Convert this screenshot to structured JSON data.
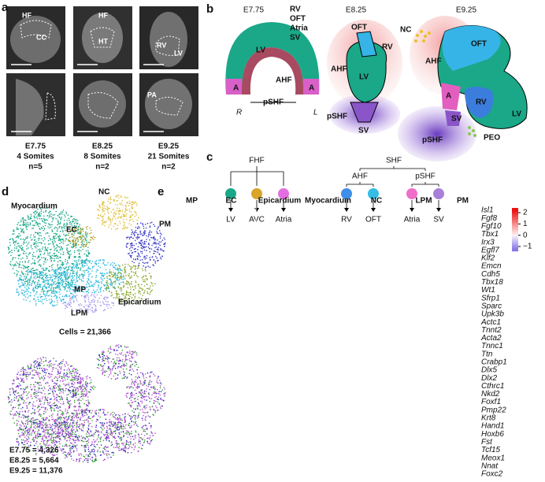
{
  "panel_a": {
    "label": "a",
    "image_labels": [
      [
        "HF",
        "CC"
      ],
      [
        "HF",
        "HT"
      ],
      [
        "RV",
        "LV"
      ],
      [],
      [],
      [
        "PA"
      ]
    ],
    "stages": [
      {
        "stage": "E7.75",
        "somites": "4 Somites",
        "n": "n=5"
      },
      {
        "stage": "E8.25",
        "somites": "8 Somites",
        "n": "n=2"
      },
      {
        "stage": "E9.25",
        "somites": "21 Somites",
        "n": "n=2"
      }
    ]
  },
  "panel_b": {
    "label": "b",
    "legend": [
      {
        "name": "RV",
        "color": "#3b7ddd"
      },
      {
        "name": "OFT",
        "color": "#36b4e8"
      },
      {
        "name": "Atria",
        "color": "#e25fc0"
      },
      {
        "name": "SV",
        "color": "#8a55c8"
      }
    ],
    "e775": {
      "stage": "E7.75",
      "labels": [
        "LV",
        "AHF",
        "A",
        "A",
        "pSHF",
        "R",
        "L"
      ]
    },
    "e825": {
      "stage": "E8.25",
      "labels": [
        "OFT",
        "RV",
        "AHF",
        "LV",
        "pSHF",
        "SV"
      ]
    },
    "e925": {
      "stage": "E9.25",
      "labels": [
        "NC",
        "AHF",
        "OFT",
        "A",
        "RV",
        "SV",
        "LV",
        "pSHF",
        "PEO"
      ]
    }
  },
  "panel_c": {
    "label": "c",
    "roots": [
      "FHF",
      "SHF"
    ],
    "branches": [
      "AHF",
      "pSHF"
    ],
    "leaves": [
      {
        "name": "LV",
        "color": "#1aa888"
      },
      {
        "name": "AVC",
        "color": "#d9a528"
      },
      {
        "name": "Atria",
        "color": "#e46ee0"
      },
      {
        "name": "RV",
        "color": "#3f8ee8"
      },
      {
        "name": "OFT",
        "color": "#34bde6"
      },
      {
        "name": "Atria",
        "color": "#ee6ec8"
      },
      {
        "name": "SV",
        "color": "#a880d8"
      }
    ]
  },
  "panel_d": {
    "label": "d",
    "clusters": [
      {
        "name": "Myocardium",
        "color": "#1aa888"
      },
      {
        "name": "NC",
        "color": "#e0c040"
      },
      {
        "name": "EC",
        "color": "#b09a20"
      },
      {
        "name": "PM",
        "color": "#3a3ac8"
      },
      {
        "name": "MP",
        "color": "#2ab8e0"
      },
      {
        "name": "Epicardium",
        "color": "#8aa830"
      },
      {
        "name": "LPM",
        "color": "#a89ae8"
      }
    ],
    "cells": "Cells = 21,366",
    "stages": [
      {
        "text": "E7.75 = 4,326",
        "color": "#2626b8"
      },
      {
        "text": "E8.25 = 5,664",
        "color": "#30a030"
      },
      {
        "text": "E9.25 = 11,376",
        "color": "#b050d0"
      }
    ]
  },
  "panel_e": {
    "label": "e",
    "groups": [
      "MP",
      "EC",
      "Epicardium",
      "Myocardium",
      "NC",
      "LPM",
      "PM"
    ],
    "genes": [
      "Isl1",
      "Fgf8",
      "Fgf10",
      "Tbx1",
      "Irx3",
      "Egfl7",
      "Klf2",
      "Emcn",
      "Cdh5",
      "Tbx18",
      "Wt1",
      "Sfrp1",
      "Sparc",
      "Upk3b",
      "Actc1",
      "Tnnt2",
      "Acta2",
      "Tnnc1",
      "Ttn",
      "Crabp1",
      "Dlx5",
      "Dlx2",
      "Cthrc1",
      "Nkd2",
      "Foxf1",
      "Pmp22",
      "Krt8",
      "Hand1",
      "Hoxb6",
      "Fst",
      "Tcf15",
      "Meox1",
      "Nnat",
      "Foxc2"
    ],
    "colorbar_ticks": [
      2,
      1,
      0,
      {
        "value": -1,
        "label": "−1"
      }
    ]
  }
}
